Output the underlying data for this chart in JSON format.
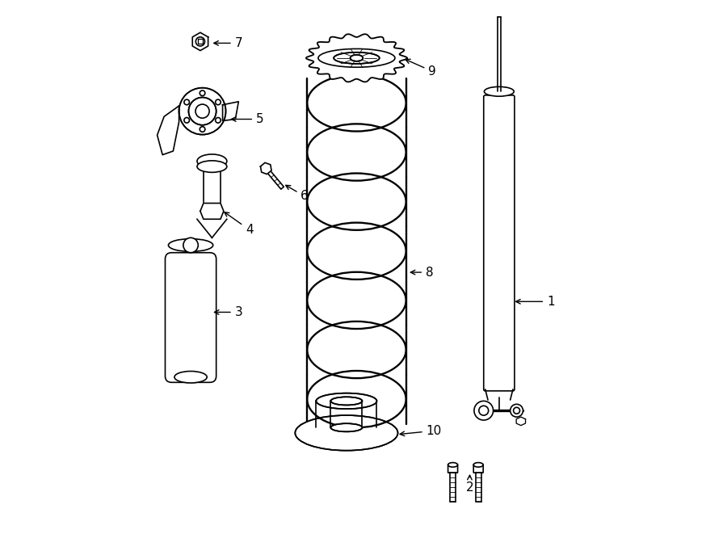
{
  "background_color": "#ffffff",
  "line_color": "#000000",
  "line_width": 1.2,
  "fig_width": 9.0,
  "fig_height": 6.61,
  "dpi": 100
}
